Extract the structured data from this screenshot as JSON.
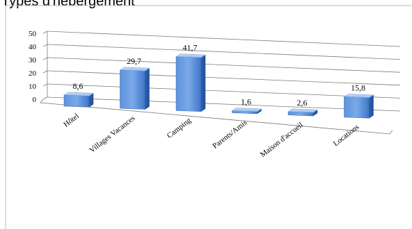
{
  "title": "Types d'hébergement",
  "colors": {
    "bar_front": "#4f86d6",
    "bar_top": "#a9c8f2",
    "bar_side": "#3467b8",
    "grid": "#7a7a7a",
    "border": "#bdbdbd"
  },
  "chart_data": {
    "type": "bar",
    "title": "Types d'hébergement",
    "categories": [
      "Hôtel",
      "Villages Vacances",
      "Camping",
      "Parents/Amis",
      "Maison d'accueil",
      "Locations"
    ],
    "values": [
      8.6,
      29.7,
      41.7,
      1.6,
      2.6,
      15.8
    ],
    "value_labels": [
      "8,6",
      "29,7",
      "41,7",
      "1,6",
      "2,6",
      "15,8"
    ],
    "yticks": [
      "0",
      "10",
      "20",
      "30",
      "40",
      "50"
    ],
    "ylim": [
      0,
      50
    ],
    "grid": true,
    "legend": "none",
    "style": "3d-perspective"
  }
}
